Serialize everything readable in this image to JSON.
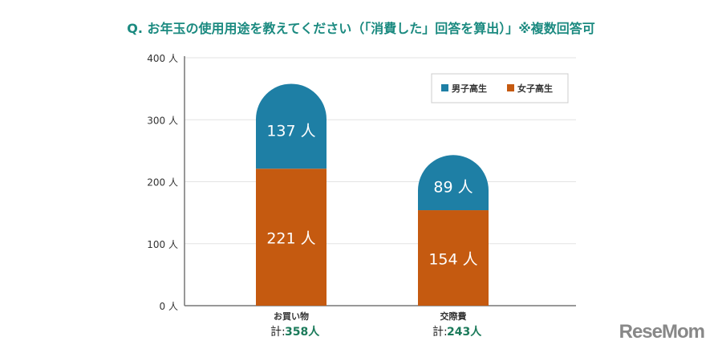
{
  "title": "Q. お年玉の使用用途を教えてください（「消費した」回答を算出）」※複数回答可",
  "logo": "ReseMom",
  "chart_data": {
    "type": "bar",
    "stacked": true,
    "title": "Q. お年玉の使用用途を教えてください（「消費した」回答を算出）」※複数回答可",
    "categories": [
      "お買い物",
      "交際費"
    ],
    "series": [
      {
        "name": "女子高生",
        "color": "#c55a10",
        "values": [
          221,
          154
        ],
        "labels": [
          "221 人",
          "154 人"
        ]
      },
      {
        "name": "男子高生",
        "color": "#1e7fa5",
        "values": [
          137,
          89
        ],
        "labels": [
          "137 人",
          "89 人"
        ]
      }
    ],
    "totals": [
      358,
      243
    ],
    "total_prefix": "計:",
    "total_labels": [
      "358人",
      "243人"
    ],
    "ylim": [
      0,
      400
    ],
    "yticks": [
      0,
      100,
      200,
      300,
      400
    ],
    "ytick_labels": [
      "0 人",
      "100 人",
      "200 人",
      "300 人",
      "400 人"
    ],
    "legend": {
      "placement": "top-right",
      "entries": [
        "男子高生",
        "女子高生"
      ]
    },
    "grid": true,
    "xlabel": "",
    "ylabel": ""
  }
}
